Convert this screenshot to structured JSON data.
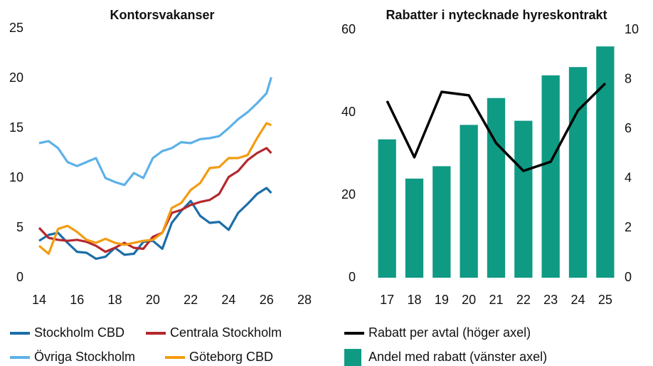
{
  "chart_data": [
    {
      "type": "line",
      "title": "Kontorsvakanser",
      "x": [
        14,
        14.5,
        15,
        15.5,
        16,
        16.5,
        17,
        17.5,
        18,
        18.5,
        19,
        19.5,
        20,
        20.5,
        21,
        21.5,
        22,
        22.5,
        23,
        23.5,
        24,
        24.5,
        25,
        25.5,
        26,
        26.25
      ],
      "series": [
        {
          "name": "Stockholm CBD",
          "color": "#1b6ea8",
          "values": [
            3.7,
            4.3,
            4.5,
            3.5,
            2.6,
            2.5,
            1.9,
            2.1,
            3.0,
            2.3,
            2.4,
            3.6,
            3.7,
            2.9,
            5.5,
            6.7,
            7.7,
            6.2,
            5.5,
            5.6,
            4.8,
            6.5,
            7.4,
            8.4,
            9.0,
            8.5
          ]
        },
        {
          "name": "Centrala Stockholm",
          "color": "#b3282e",
          "values": [
            5.0,
            4.0,
            3.8,
            3.7,
            3.8,
            3.6,
            3.2,
            2.6,
            3.0,
            3.5,
            3.0,
            2.9,
            4.1,
            4.5,
            6.5,
            6.8,
            7.3,
            7.6,
            7.8,
            8.4,
            10.1,
            10.7,
            11.8,
            12.5,
            13.0,
            12.5
          ]
        },
        {
          "name": "Övriga Stockholm",
          "color": "#5db1e8",
          "values": [
            13.5,
            13.7,
            13.0,
            11.6,
            11.2,
            11.6,
            12.0,
            10.0,
            9.6,
            9.3,
            10.5,
            10.0,
            12.0,
            12.7,
            13.0,
            13.6,
            13.5,
            13.9,
            14.0,
            14.2,
            15.0,
            15.9,
            16.6,
            17.5,
            18.5,
            20.1
          ]
        },
        {
          "name": "Göteborg CBD",
          "color": "#f29c11",
          "values": [
            3.2,
            2.4,
            4.9,
            5.2,
            4.6,
            3.8,
            3.5,
            3.9,
            3.5,
            3.3,
            3.5,
            3.7,
            3.8,
            4.5,
            7.0,
            7.5,
            8.8,
            9.5,
            11.0,
            11.1,
            12.0,
            12.0,
            12.3,
            14.0,
            15.5,
            15.3
          ]
        }
      ],
      "xlim": [
        14,
        28
      ],
      "xticks": [
        14,
        16,
        18,
        20,
        22,
        24,
        26,
        28
      ],
      "ylim": [
        0,
        25
      ],
      "yticks": [
        0,
        5,
        10,
        15,
        20,
        25
      ]
    },
    {
      "type": "bar",
      "title": "Rabatter i nytecknade hyreskontrakt",
      "categories": [
        "17",
        "18",
        "19",
        "20",
        "21",
        "22",
        "23",
        "24",
        "25"
      ],
      "series": [
        {
          "name": "Rabatt per avtal (höger axel)",
          "type": "line",
          "axis": "y2",
          "color": "#000000",
          "values": [
            7.13,
            4.86,
            7.5,
            7.36,
            5.43,
            4.31,
            4.68,
            6.75,
            7.84
          ]
        },
        {
          "name": "Andel med rabatt (vänster axel)",
          "type": "bar",
          "color": "#0f9a84",
          "values": [
            33.5,
            24,
            27,
            37,
            43.5,
            38,
            49,
            51,
            56
          ]
        }
      ],
      "ylim": [
        0,
        60
      ],
      "yticks": [
        0,
        20,
        40,
        60
      ],
      "y2lim": [
        0,
        10
      ],
      "y2ticks": [
        0,
        2,
        4,
        6,
        8,
        10
      ]
    }
  ]
}
